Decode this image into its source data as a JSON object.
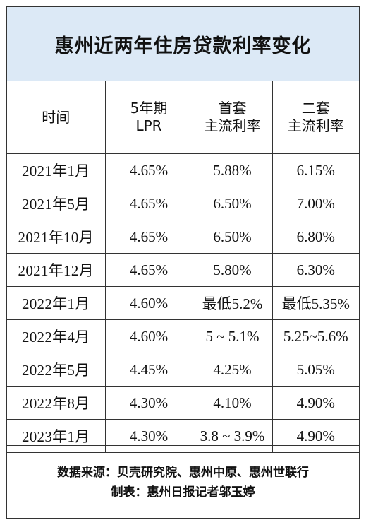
{
  "title": "惠州近两年住房贷款利率变化",
  "headers": {
    "time": "时间",
    "lpr_line1": "5年期",
    "lpr_line2": "LPR",
    "first_line1": "首套",
    "first_line2": "主流利率",
    "second_line1": "二套",
    "second_line2": "主流利率"
  },
  "chart_data": {
    "type": "table",
    "title": "惠州近两年住房贷款利率变化",
    "columns": [
      "时间",
      "5年期LPR",
      "首套主流利率",
      "二套主流利率"
    ],
    "rows": [
      [
        "2021年1月",
        "4.65%",
        "5.88%",
        "6.15%"
      ],
      [
        "2021年5月",
        "4.65%",
        "6.50%",
        "7.00%"
      ],
      [
        "2021年10月",
        "4.65%",
        "6.50%",
        "6.80%"
      ],
      [
        "2021年12月",
        "4.65%",
        "5.80%",
        "6.30%"
      ],
      [
        "2022年1月",
        "4.60%",
        "最低5.2%",
        "最低5.35%"
      ],
      [
        "2022年4月",
        "4.60%",
        "5 ~ 5.1%",
        "5.25~5.6%"
      ],
      [
        "2022年5月",
        "4.45%",
        "4.25%",
        "5.05%"
      ],
      [
        "2022年8月",
        "4.30%",
        "4.10%",
        "4.90%"
      ],
      [
        "2023年1月",
        "4.30%",
        "3.8 ~ 3.9%",
        "4.90%"
      ]
    ]
  },
  "footer": {
    "source": "数据来源：贝壳研究院、惠州中原、惠州世联行",
    "credit": "制表：惠州日报记者邬玉婷"
  }
}
